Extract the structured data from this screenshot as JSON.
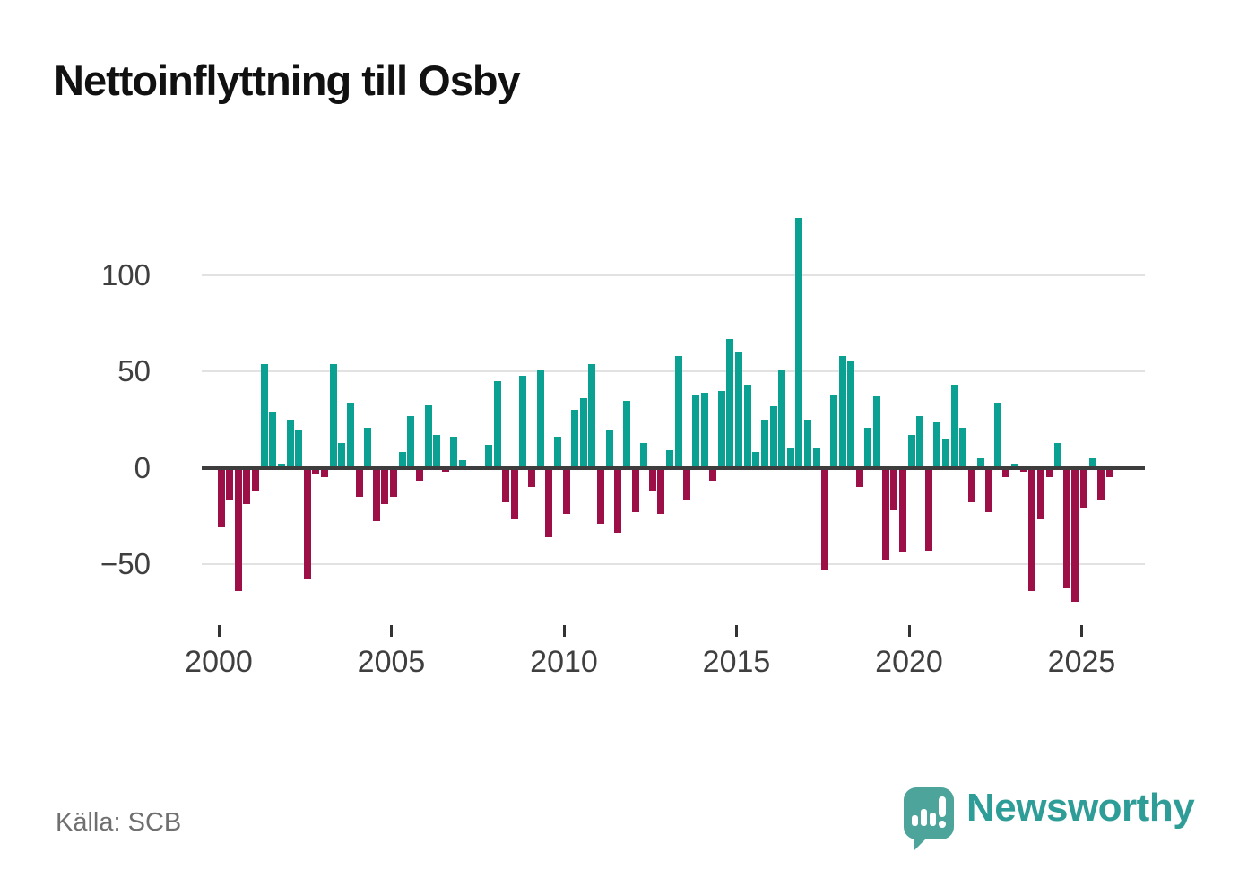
{
  "title": "Nettoinflyttning till Osby",
  "source": "Källa: SCB",
  "brand": "Newsworthy",
  "colors": {
    "positive": "#0aa092",
    "negative": "#9d1047",
    "grid": "#e2e2e2",
    "zero_line": "#3d3d3d",
    "axis_text": "#3f3f3f",
    "title_text": "#111111",
    "source_text": "#6f6f6f",
    "brand_teal": "#2f9d97",
    "icon_teal": "#4da49b"
  },
  "chart_data": {
    "type": "bar",
    "title": "Nettoinflyttning till Osby",
    "series_name": "Nettoinflyttning",
    "freq": "quarterly",
    "start": "2000-Q1",
    "end": "2025-Q4",
    "grid": "horizontal",
    "legend": "none",
    "ylim": [
      -78,
      138
    ],
    "yticks": [
      100,
      50,
      0,
      -50
    ],
    "xticks": [
      2000,
      2005,
      2010,
      2015,
      2020,
      2025
    ],
    "positive_color": "#0aa092",
    "negative_color": "#9d1047",
    "values": [
      -31,
      -17,
      -64,
      -19,
      -12,
      54,
      29,
      2,
      25,
      20,
      -58,
      -3,
      -5,
      54,
      13,
      34,
      -15,
      21,
      -28,
      -19,
      -15,
      8,
      27,
      -7,
      33,
      17,
      -2,
      16,
      4,
      0,
      0,
      12,
      45,
      -18,
      -27,
      48,
      -10,
      51,
      -36,
      16,
      -24,
      30,
      36,
      54,
      -29,
      20,
      -34,
      35,
      -23,
      13,
      -12,
      -24,
      9,
      58,
      -17,
      38,
      39,
      -7,
      40,
      67,
      60,
      43,
      8,
      25,
      32,
      51,
      10,
      130,
      25,
      10,
      -53,
      38,
      58,
      56,
      -10,
      21,
      37,
      -48,
      -22,
      -44,
      17,
      27,
      -43,
      24,
      15,
      43,
      21,
      -18,
      5,
      -23,
      34,
      -5,
      2,
      -2,
      -64,
      -27,
      -5,
      13,
      -63,
      -70,
      -21,
      5,
      -17,
      -5
    ]
  }
}
